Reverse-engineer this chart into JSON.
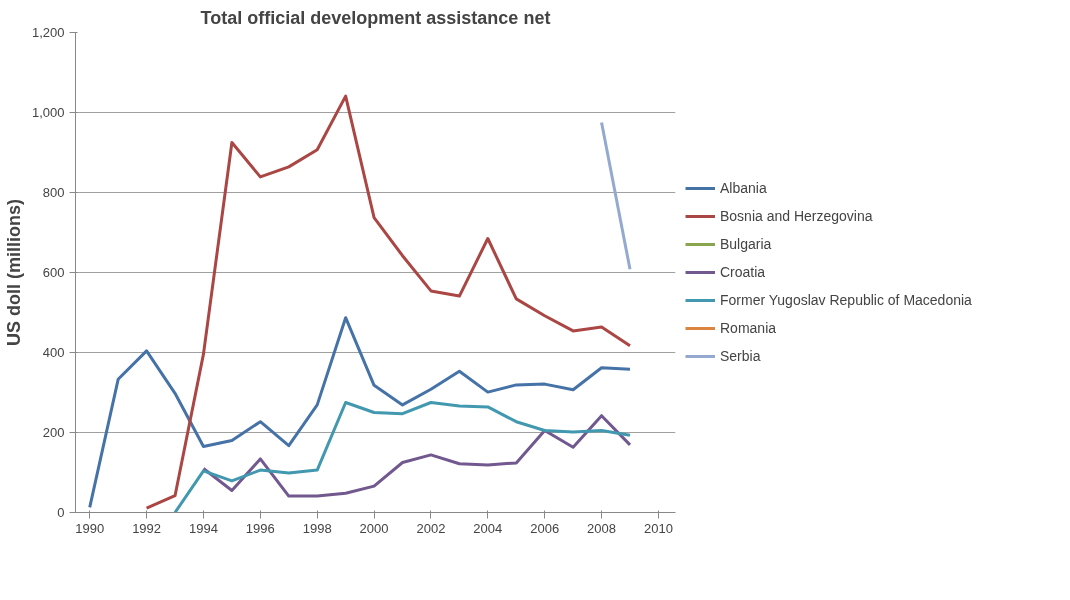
{
  "chart_data": {
    "type": "line",
    "title": "Total official development assistance net",
    "ylabel": "US doll (millions)",
    "x": [
      1990,
      1991,
      1992,
      1993,
      1994,
      1995,
      1996,
      1997,
      1998,
      1999,
      2000,
      2001,
      2002,
      2003,
      2004,
      2005,
      2006,
      2007,
      2008,
      2009
    ],
    "series": [
      {
        "name": "Albania",
        "color": "#4572a7",
        "values": [
          13,
          333,
          404,
          298,
          165,
          180,
          227,
          167,
          269,
          487,
          318,
          269,
          308,
          353,
          301,
          319,
          321,
          307,
          362,
          358
        ]
      },
      {
        "name": "Bosnia and Herzegovina",
        "color": "#aa4643",
        "values": [
          null,
          null,
          11,
          42,
          396,
          925,
          839,
          864,
          907,
          1041,
          737,
          642,
          554,
          541,
          685,
          534,
          492,
          454,
          464,
          417
        ]
      },
      {
        "name": "Bulgaria",
        "color": "#89a54e",
        "values": [
          null,
          null,
          null,
          null,
          null,
          null,
          null,
          null,
          null,
          null,
          null,
          null,
          null,
          null,
          null,
          null,
          null,
          null,
          null,
          null
        ]
      },
      {
        "name": "Croatia",
        "color": "#71588f",
        "values": [
          null,
          null,
          null,
          null,
          110,
          55,
          134,
          41,
          41,
          48,
          66,
          125,
          144,
          122,
          119,
          124,
          205,
          163,
          242,
          169
        ]
      },
      {
        "name": "Former Yugoslav Republic of Macedonia",
        "color": "#4198af",
        "values": [
          null,
          null,
          null,
          0,
          104,
          79,
          106,
          99,
          106,
          275,
          250,
          247,
          275,
          266,
          264,
          227,
          205,
          201,
          205,
          193
        ]
      },
      {
        "name": "Romania",
        "color": "#db843d",
        "values": [
          null,
          null,
          null,
          null,
          null,
          null,
          null,
          null,
          null,
          null,
          null,
          null,
          null,
          null,
          null,
          null,
          null,
          null,
          null,
          null
        ]
      },
      {
        "name": "Serbia",
        "color": "#93a9cf",
        "values": [
          null,
          null,
          null,
          null,
          null,
          null,
          null,
          null,
          null,
          null,
          null,
          null,
          null,
          null,
          null,
          null,
          null,
          null,
          975,
          608
        ]
      }
    ],
    "xlim": [
      1989.5,
      2010.6
    ],
    "xticks": [
      1990,
      1992,
      1994,
      1996,
      1998,
      2000,
      2002,
      2004,
      2006,
      2008,
      2010
    ],
    "ylim": [
      0,
      1200
    ],
    "yticks": [
      0,
      200,
      400,
      600,
      800,
      {
        "value": 1000,
        "label": "1,000"
      },
      {
        "value": 1200,
        "label": "1,200"
      }
    ],
    "grid": "y",
    "legend": "right",
    "marker": "none",
    "line_style": "solid"
  }
}
